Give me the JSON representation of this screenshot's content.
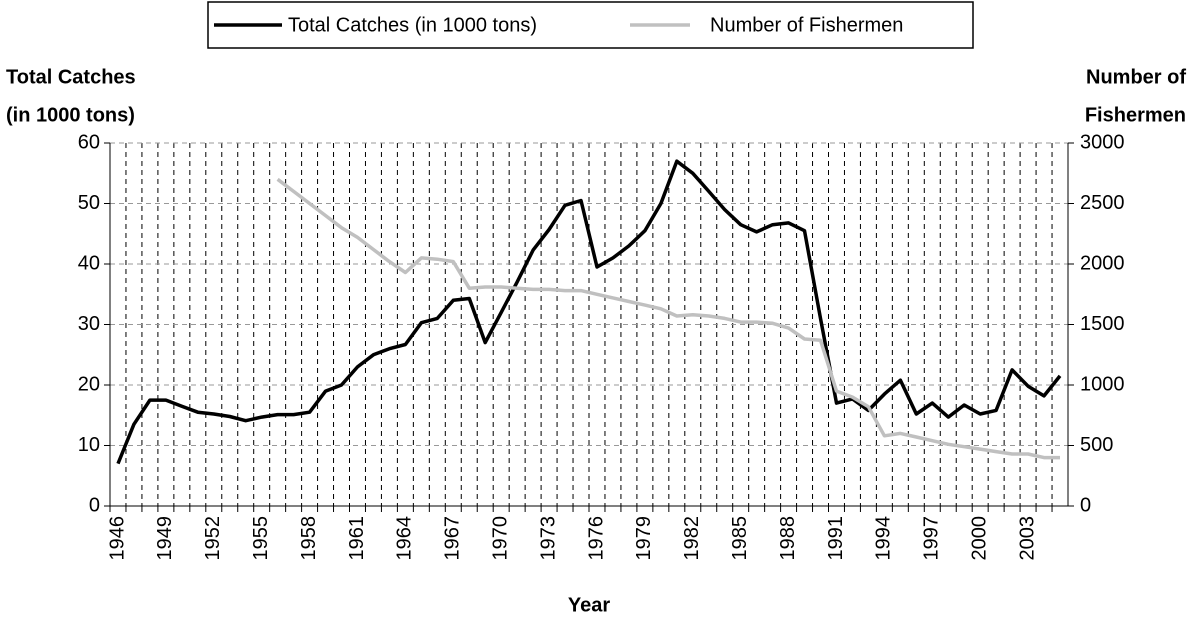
{
  "chart_data": {
    "type": "line",
    "legend": "top",
    "xlabel": "Year",
    "ylabel": [
      "Total Catches",
      "(in 1000 tons)"
    ],
    "y2label": [
      "Number of",
      "Fishermen"
    ],
    "categories": [
      "1946",
      null,
      null,
      "1949",
      null,
      null,
      "1952",
      null,
      null,
      "1955",
      null,
      null,
      "1958",
      null,
      null,
      "1961",
      null,
      null,
      "1964",
      null,
      null,
      "1967",
      null,
      null,
      "1970",
      null,
      null,
      "1973",
      null,
      null,
      "1976",
      null,
      null,
      "1979",
      null,
      null,
      "1982",
      null,
      null,
      "1985",
      null,
      null,
      "1988",
      null,
      null,
      "1991",
      null,
      null,
      "1994",
      null,
      null,
      "1997",
      null,
      null,
      "2000",
      null,
      null,
      "2003",
      null,
      null
    ],
    "series": [
      {
        "name": "Total Catches (in 1000 tons)",
        "color": "#000000",
        "axis": "y",
        "values": [
          7,
          13.5,
          17.5,
          17.5,
          16.5,
          15.5,
          15.2,
          14.8,
          14.1,
          14.7,
          15.1,
          15.1,
          15.5,
          19,
          20,
          23,
          25,
          26,
          26.7,
          30.3,
          31,
          34,
          34.3,
          27,
          32,
          37,
          42.3,
          45.7,
          49.7,
          50.5,
          39.5,
          41,
          43,
          45.5,
          50,
          57,
          55,
          52,
          49,
          46.5,
          45.3,
          46.5,
          46.8,
          45.5,
          31,
          17,
          17.7,
          15.8,
          18.5,
          20.8,
          15.2,
          17,
          14.7,
          16.7,
          15.2,
          15.8,
          22.5,
          19.8,
          18.2,
          21.5
        ]
      },
      {
        "name": "Number of Fishermen",
        "color": "#c0c0c0",
        "axis": "y2",
        "values": [
          null,
          null,
          null,
          null,
          null,
          null,
          null,
          null,
          null,
          null,
          2700,
          2600,
          2500,
          2400,
          2300,
          2220,
          2120,
          2020,
          1930,
          2050,
          2040,
          2020,
          1800,
          1810,
          1810,
          1800,
          1790,
          1790,
          1780,
          1780,
          1750,
          1720,
          1690,
          1660,
          1630,
          1570,
          1580,
          1570,
          1550,
          1520,
          1520,
          1510,
          1470,
          1380,
          1370,
          950,
          900,
          820,
          580,
          600,
          570,
          540,
          510,
          490,
          470,
          450,
          430,
          430,
          400,
          400
        ]
      }
    ],
    "ylim": [
      0,
      60
    ],
    "yticks": [
      0,
      10,
      20,
      30,
      40,
      50,
      60
    ],
    "y2lim": [
      0,
      3000
    ],
    "y2ticks": [
      0,
      500,
      1000,
      1500,
      2000,
      2500,
      3000
    ],
    "grid": true
  }
}
